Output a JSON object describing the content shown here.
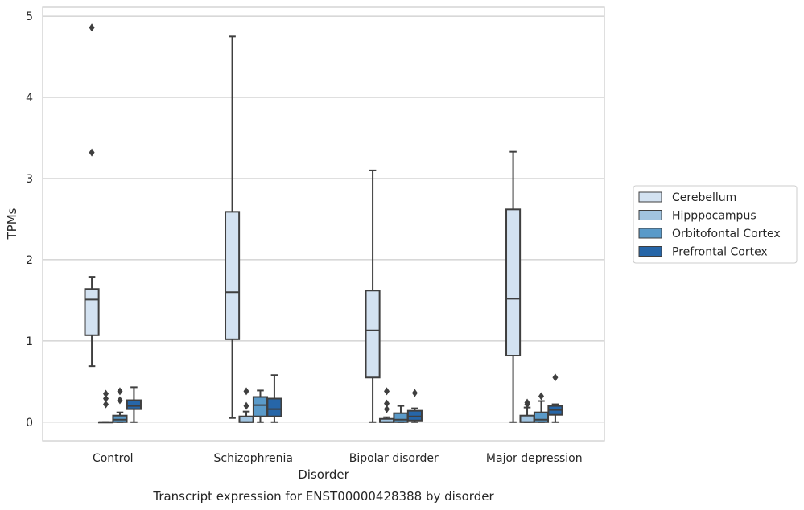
{
  "chart_data": {
    "type": "box",
    "caption": "Transcript expression for ENST00000428388 by disorder",
    "xlabel": "Disorder",
    "ylabel": "TPMs",
    "ylim": [
      -0.23,
      5.11
    ],
    "yticks": [
      0,
      1,
      2,
      3,
      4,
      5
    ],
    "grid": true,
    "legend_placement": "right",
    "categories": [
      "Control",
      "Schizophrenia",
      "Bipolar disorder",
      "Major depression"
    ],
    "series": [
      {
        "name": "Cerebellum",
        "color": "#d3e2f1",
        "boxes": [
          {
            "whislo": 0.69,
            "q1": 1.07,
            "med": 1.51,
            "q3": 1.64,
            "whishi": 1.79,
            "fliers": [
              3.32,
              4.86
            ]
          },
          {
            "whislo": 0.05,
            "q1": 1.02,
            "med": 1.6,
            "q3": 2.59,
            "whishi": 4.75,
            "fliers": []
          },
          {
            "whislo": 0.0,
            "q1": 0.55,
            "med": 1.13,
            "q3": 1.62,
            "whishi": 3.1,
            "fliers": []
          },
          {
            "whislo": 0.0,
            "q1": 0.82,
            "med": 1.52,
            "q3": 2.62,
            "whishi": 3.33,
            "fliers": []
          }
        ]
      },
      {
        "name": "Hipppocampus",
        "color": "#a1c4e0",
        "boxes": [
          {
            "whislo": 0.0,
            "q1": 0.0,
            "med": 0.0,
            "q3": 0.0,
            "whishi": 0.0,
            "fliers": [
              0.22,
              0.29,
              0.35
            ]
          },
          {
            "whislo": 0.0,
            "q1": 0.0,
            "med": 0.0,
            "q3": 0.07,
            "whishi": 0.13,
            "fliers": [
              0.2,
              0.38
            ]
          },
          {
            "whislo": 0.0,
            "q1": 0.0,
            "med": 0.0,
            "q3": 0.04,
            "whishi": 0.06,
            "fliers": [
              0.16,
              0.23,
              0.38
            ]
          },
          {
            "whislo": 0.0,
            "q1": 0.0,
            "med": 0.0,
            "q3": 0.08,
            "whishi": 0.18,
            "fliers": [
              0.22,
              0.24
            ]
          }
        ]
      },
      {
        "name": "Orbitofontal Cortex",
        "color": "#5a9ac9",
        "boxes": [
          {
            "whislo": 0.0,
            "q1": 0.0,
            "med": 0.03,
            "q3": 0.08,
            "whishi": 0.12,
            "fliers": [
              0.27,
              0.38
            ]
          },
          {
            "whislo": 0.0,
            "q1": 0.07,
            "med": 0.21,
            "q3": 0.31,
            "whishi": 0.39,
            "fliers": []
          },
          {
            "whislo": 0.0,
            "q1": 0.0,
            "med": 0.03,
            "q3": 0.11,
            "whishi": 0.2,
            "fliers": []
          },
          {
            "whislo": 0.0,
            "q1": 0.0,
            "med": 0.03,
            "q3": 0.12,
            "whishi": 0.26,
            "fliers": [
              0.32
            ]
          }
        ]
      },
      {
        "name": "Prefrontal Cortex",
        "color": "#2666a8",
        "boxes": [
          {
            "whislo": 0.0,
            "q1": 0.16,
            "med": 0.2,
            "q3": 0.27,
            "whishi": 0.43,
            "fliers": []
          },
          {
            "whislo": 0.0,
            "q1": 0.07,
            "med": 0.16,
            "q3": 0.29,
            "whishi": 0.58,
            "fliers": []
          },
          {
            "whislo": 0.0,
            "q1": 0.02,
            "med": 0.07,
            "q3": 0.14,
            "whishi": 0.17,
            "fliers": [
              0.36
            ]
          },
          {
            "whislo": 0.0,
            "q1": 0.09,
            "med": 0.15,
            "q3": 0.2,
            "whishi": 0.22,
            "fliers": [
              0.55
            ]
          }
        ]
      }
    ]
  }
}
